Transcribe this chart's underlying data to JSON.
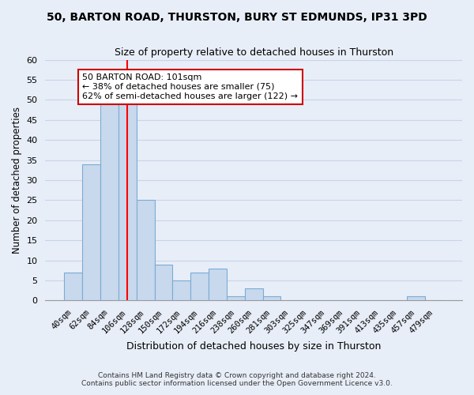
{
  "title": "50, BARTON ROAD, THURSTON, BURY ST EDMUNDS, IP31 3PD",
  "subtitle": "Size of property relative to detached houses in Thurston",
  "xlabel": "Distribution of detached houses by size in Thurston",
  "ylabel": "Number of detached properties",
  "bar_labels": [
    "40sqm",
    "62sqm",
    "84sqm",
    "106sqm",
    "128sqm",
    "150sqm",
    "172sqm",
    "194sqm",
    "216sqm",
    "238sqm",
    "260sqm",
    "281sqm",
    "303sqm",
    "325sqm",
    "347sqm",
    "369sqm",
    "391sqm",
    "413sqm",
    "435sqm",
    "457sqm",
    "479sqm"
  ],
  "bar_values": [
    7,
    34,
    49,
    49,
    25,
    9,
    5,
    7,
    8,
    1,
    3,
    1,
    0,
    0,
    0,
    0,
    0,
    0,
    0,
    1,
    0
  ],
  "bar_color": "#c8d8ed",
  "bar_edge_color": "#7aacd4",
  "vline_x_index": 3,
  "vline_color": "red",
  "annotation_text": "50 BARTON ROAD: 101sqm\n← 38% of detached houses are smaller (75)\n62% of semi-detached houses are larger (122) →",
  "annotation_box_color": "white",
  "annotation_box_edge": "#cc0000",
  "ylim": [
    0,
    60
  ],
  "yticks": [
    0,
    5,
    10,
    15,
    20,
    25,
    30,
    35,
    40,
    45,
    50,
    55,
    60
  ],
  "grid_color": "#c8d4e8",
  "background_color": "#e8eef8",
  "footer_line1": "Contains HM Land Registry data © Crown copyright and database right 2024.",
  "footer_line2": "Contains public sector information licensed under the Open Government Licence v3.0."
}
